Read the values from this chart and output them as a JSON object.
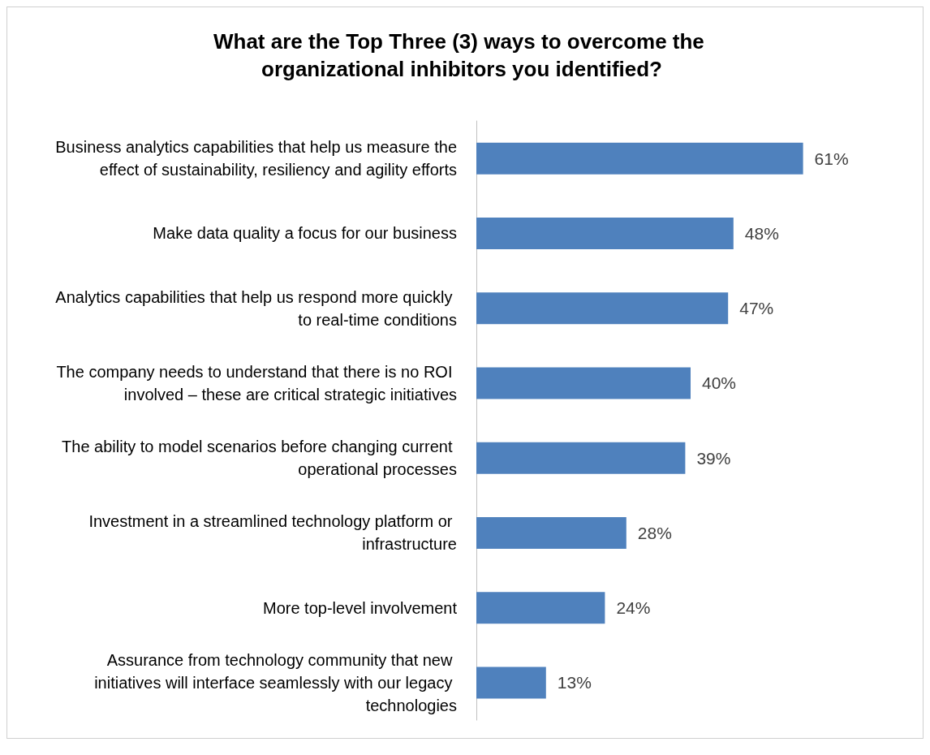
{
  "chart_data": {
    "type": "bar",
    "orientation": "horizontal",
    "title": "What are the Top Three (3) ways to overcome the organizational inhibitors you identified?",
    "categories": [
      "Business analytics capabilities that help us measure the effect of sustainability, resiliency and agility efforts",
      "Make data quality a focus for our business",
      "Analytics capabilities that help us respond more quickly to real-time conditions",
      "The company needs to understand that there is no ROI involved – these are critical strategic initiatives",
      "The ability to model scenarios before changing current operational processes",
      "Investment in a streamlined technology platform or infrastructure",
      "More top-level involvement",
      "Assurance from technology community that new initiatives will interface seamlessly with our legacy technologies"
    ],
    "values": [
      61,
      48,
      47,
      40,
      39,
      28,
      24,
      13
    ],
    "value_labels": [
      "61%",
      "48%",
      "47%",
      "40%",
      "39%",
      "28%",
      "24%",
      "13%"
    ],
    "color": "#4f81bd",
    "tick_labels": "y"
  }
}
